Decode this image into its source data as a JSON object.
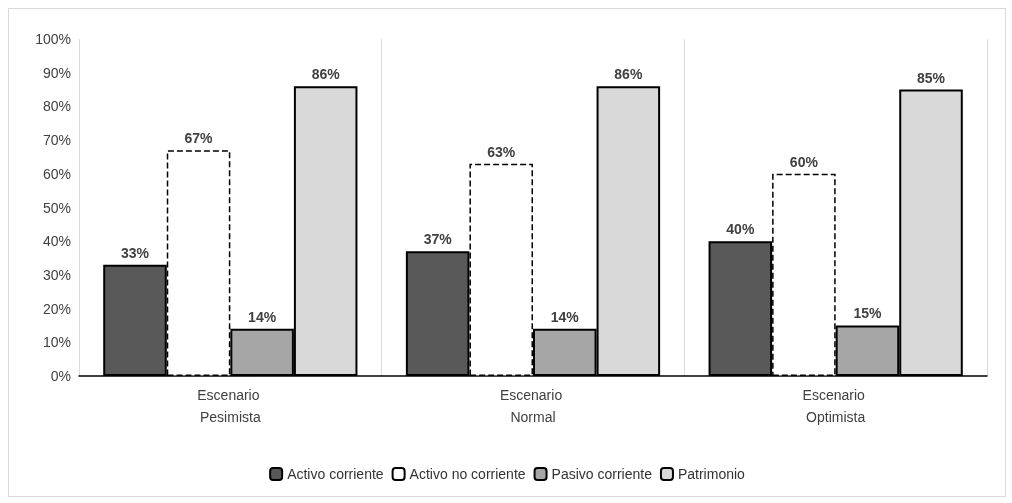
{
  "chart_data": {
    "type": "bar",
    "categories": [
      "Escenario Pesimista",
      "Escenario Normal",
      "Escenario Optimista"
    ],
    "series": [
      {
        "name": "Activo corriente",
        "color": "#595959",
        "values": [
          33,
          37,
          40
        ],
        "value_labels": [
          "33%",
          "37%",
          "40%"
        ]
      },
      {
        "name": "Activo no corriente",
        "color": "#ffffff",
        "line_style": "dashed",
        "values": [
          67,
          63,
          60
        ],
        "value_labels": [
          "67%",
          "63%",
          "60%"
        ]
      },
      {
        "name": "Pasivo corriente",
        "color": "#a6a6a6",
        "values": [
          14,
          14,
          15
        ],
        "value_labels": [
          "14%",
          "14%",
          "15%"
        ]
      },
      {
        "name": "Patrimonio",
        "color": "#d9d9d9",
        "values": [
          86,
          86,
          85
        ],
        "value_labels": [
          "86%",
          "86%",
          "85%"
        ]
      }
    ],
    "ylim": [
      0,
      100
    ],
    "yticks": [
      {
        "value": 0,
        "label": "0%"
      },
      {
        "value": 10,
        "label": "10%"
      },
      {
        "value": 20,
        "label": "20%"
      },
      {
        "value": 30,
        "label": "30%"
      },
      {
        "value": 40,
        "label": "40%"
      },
      {
        "value": 50,
        "label": "50%"
      },
      {
        "value": 60,
        "label": "60%"
      },
      {
        "value": 70,
        "label": "70%"
      },
      {
        "value": 80,
        "label": "80%"
      },
      {
        "value": 90,
        "label": "90%"
      },
      {
        "value": 100,
        "label": "100%"
      }
    ],
    "grid": "x",
    "legend": "bottom"
  }
}
